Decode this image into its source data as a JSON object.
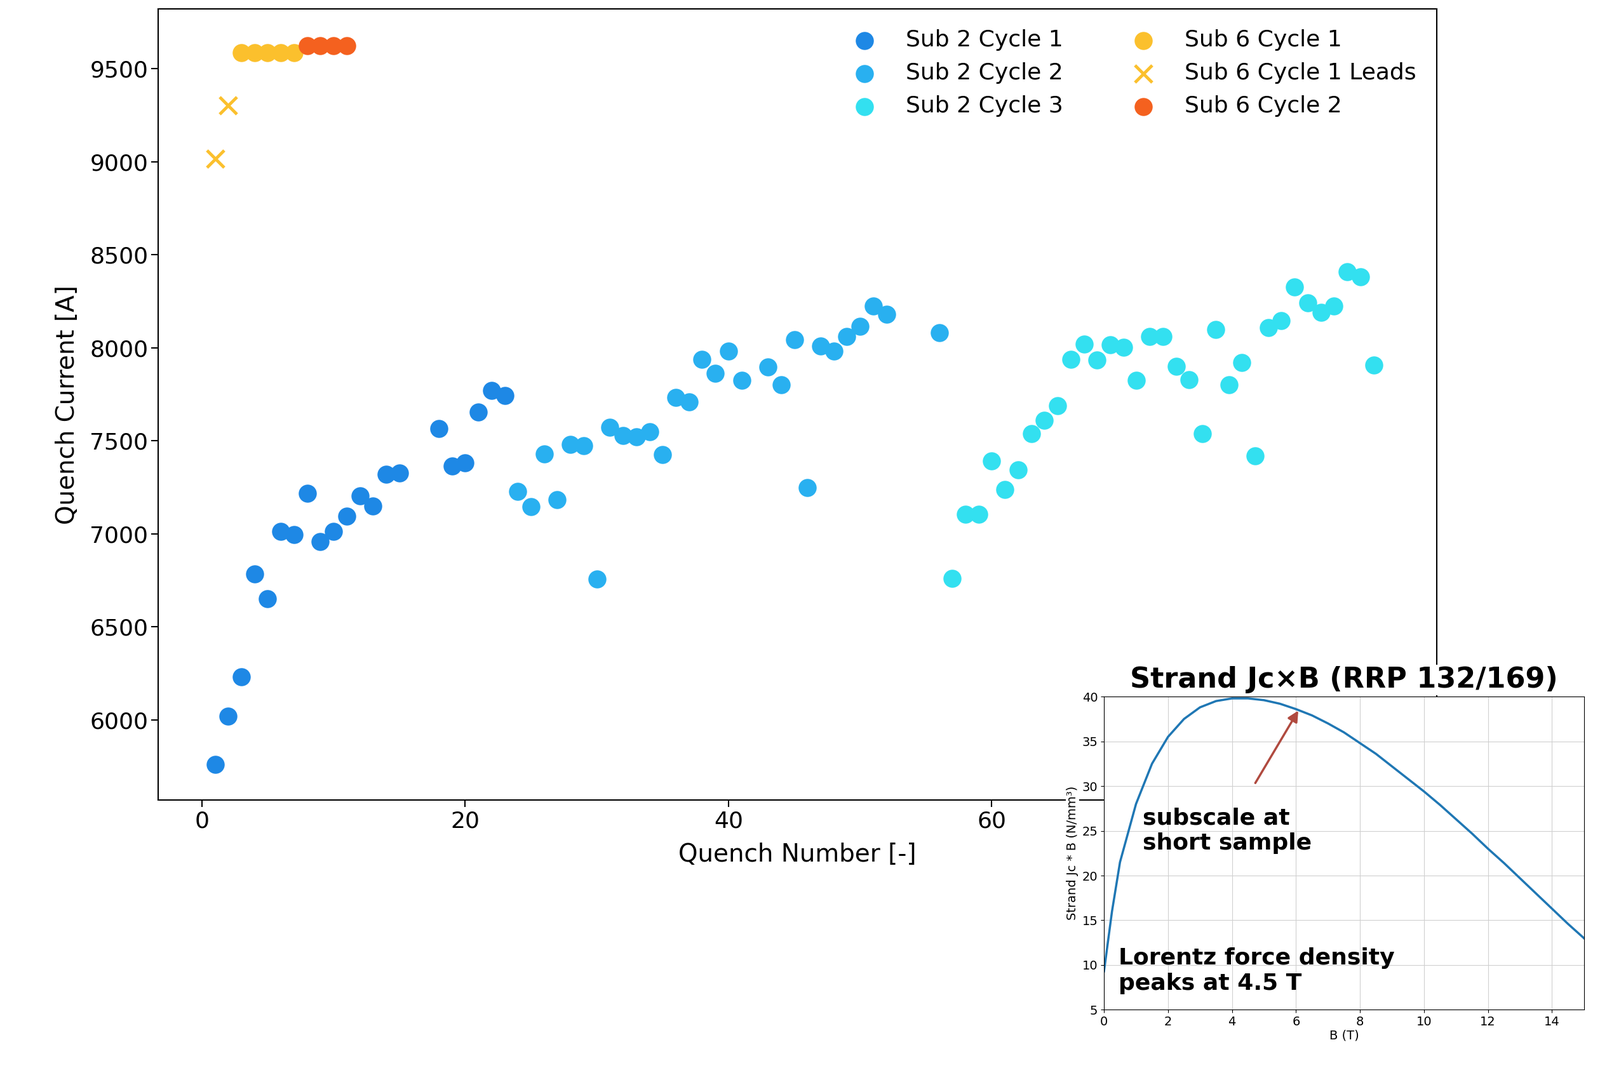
{
  "chart_data": [
    {
      "type": "scatter",
      "x_label": "Quench Number [-]",
      "y_label": "Quench Current [A]",
      "xlim": [
        -3.3,
        93.8
      ],
      "xticks": [
        0,
        20,
        40,
        60
      ],
      "ylim": [
        5567,
        9823
      ],
      "yticks": [
        6000,
        6500,
        7000,
        7500,
        8000,
        8500,
        9000,
        9500
      ],
      "grid": false,
      "legend": "upper right",
      "series": [
        {
          "name": "Sub 2 Cycle 1",
          "color": "#1e88e5",
          "marker": "circle",
          "x": [
            1,
            2,
            3,
            4,
            5,
            6,
            7,
            8,
            9,
            10,
            11,
            12,
            13,
            14,
            15,
            18,
            19,
            20,
            21,
            22,
            23
          ],
          "values": [
            5759,
            6020,
            6230,
            6783,
            6652,
            7013,
            6997,
            7216,
            6958,
            7013,
            7095,
            7205,
            7150,
            7320,
            7325,
            7566,
            7364,
            7380,
            7654,
            7769,
            7742
          ]
        },
        {
          "name": "Sub 2 Cycle 2",
          "color": "#29b0f0",
          "marker": "circle",
          "x": [
            24,
            25,
            26,
            27,
            28,
            29,
            30,
            31,
            32,
            33,
            34,
            35,
            36,
            37,
            38,
            39,
            40,
            41,
            43,
            44,
            45,
            46,
            47,
            48,
            49,
            50,
            51,
            52,
            56
          ],
          "values": [
            7227,
            7145,
            7430,
            7183,
            7479,
            7473,
            6756,
            7572,
            7528,
            7522,
            7550,
            7424,
            7731,
            7709,
            7939,
            7862,
            7982,
            7824,
            7895,
            7802,
            8043,
            7249,
            8010,
            7982,
            8059,
            8114,
            8223,
            8180,
            8081
          ]
        },
        {
          "name": "Sub 2 Cycle 3",
          "color": "#33e0f0",
          "marker": "circle",
          "x": [
            57,
            58,
            59,
            60,
            61,
            62,
            63,
            64,
            65,
            66,
            67,
            68,
            69,
            70,
            71,
            72,
            73,
            74,
            75,
            76,
            77,
            78,
            79,
            80,
            81,
            82,
            83,
            84,
            85,
            86,
            87,
            88,
            89
          ],
          "values": [
            6761,
            7106,
            7106,
            7391,
            7238,
            7342,
            7539,
            7610,
            7687,
            7939,
            8021,
            7933,
            8015,
            8004,
            7824,
            8059,
            8059,
            7900,
            7829,
            7539,
            8098,
            7802,
            7922,
            7418,
            8109,
            8147,
            8327,
            8240,
            8191,
            8223,
            8410,
            8382,
            7906
          ]
        },
        {
          "name": "Sub 6 Cycle 1",
          "color": "#fbc02d",
          "marker": "circle",
          "x": [
            3,
            4,
            5,
            6,
            7
          ],
          "values": [
            9587,
            9587,
            9587,
            9587,
            9587
          ]
        },
        {
          "name": "Sub 6 Cycle 1 Leads",
          "color": "#fbc02d",
          "marker": "x",
          "x": [
            1,
            2
          ],
          "values": [
            9017,
            9302
          ]
        },
        {
          "name": "Sub 6 Cycle 2",
          "color": "#f4611f",
          "marker": "circle",
          "x": [
            8,
            9,
            10,
            11
          ],
          "values": [
            9625,
            9625,
            9625,
            9625
          ]
        }
      ]
    },
    {
      "type": "line",
      "title": "Strand Jc×B (RRP 132/169)",
      "x_label": "B (T)",
      "y_label": "Strand Jc * B (N/mm³)",
      "xlim": [
        0,
        15
      ],
      "xticks": [
        0,
        2,
        4,
        6,
        8,
        10,
        12,
        14
      ],
      "ylim": [
        5,
        40
      ],
      "yticks": [
        5,
        10,
        15,
        20,
        25,
        30,
        35,
        40
      ],
      "grid": true,
      "color": "#1f77b4",
      "x": [
        0,
        0.25,
        0.5,
        1,
        1.5,
        2,
        2.5,
        3,
        3.5,
        4,
        4.5,
        5,
        5.5,
        6,
        6.5,
        7,
        7.5,
        8,
        8.5,
        9,
        9.5,
        10,
        10.5,
        11,
        11.5,
        12,
        12.5,
        13,
        13.5,
        14,
        14.5,
        15
      ],
      "values": [
        9.3,
        16,
        21.5,
        28,
        32.5,
        35.5,
        37.5,
        38.8,
        39.5,
        39.8,
        39.8,
        39.6,
        39.2,
        38.6,
        37.9,
        37,
        36,
        34.8,
        33.6,
        32.2,
        30.8,
        29.4,
        27.9,
        26.3,
        24.7,
        23,
        21.4,
        19.7,
        18,
        16.3,
        14.6,
        13
      ],
      "annotations": [
        {
          "text": "subscale at\nshort sample",
          "x": 6.1,
          "y": 38.6
        },
        {
          "text": "Lorentz force density\npeaks at 4.5 T"
        }
      ]
    }
  ]
}
